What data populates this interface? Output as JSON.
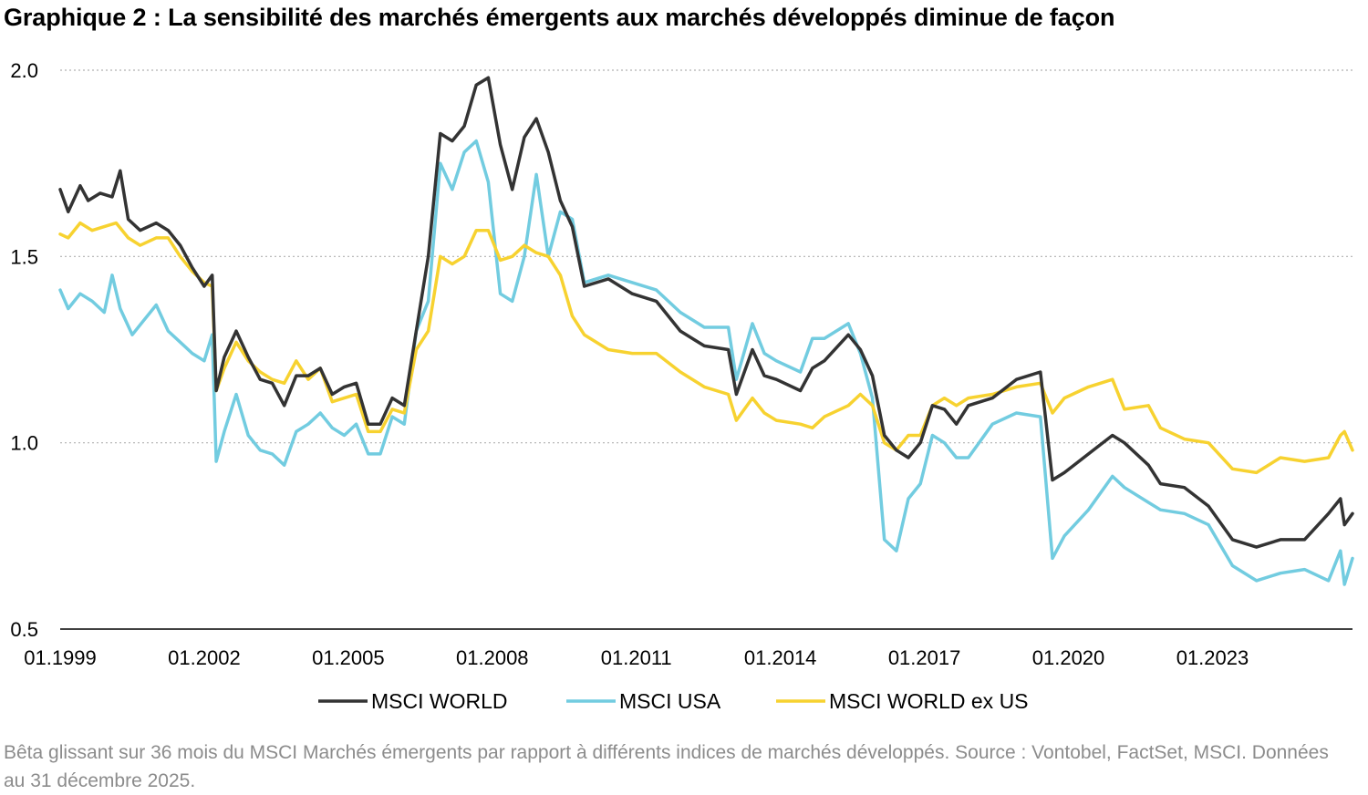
{
  "title": "Graphique 2 : La sensibilité des marchés émergents aux marchés développés diminue de façon",
  "note": "Bêta glissant sur 36 mois du MSCI Marchés émergents par rapport à différents indices de marchés développés. Source : Vontobel, FactSet, MSCI. Données au 31 décembre 2025.",
  "colors": {
    "world": "#333333",
    "usa": "#72cce0",
    "exus": "#f7d230",
    "grid": "#b0b0b0"
  },
  "chart_data": {
    "type": "line",
    "x_axis": {
      "start": "01.1999",
      "end": "12.2025",
      "ticks": [
        "01.1999",
        "01.2002",
        "01.2005",
        "01.2008",
        "01.2011",
        "01.2014",
        "01.2017",
        "01.2020",
        "01.2023"
      ]
    },
    "y_axis": {
      "min": 0.5,
      "max": 2.0,
      "ticks": [
        "0.5",
        "1.0",
        "1.5",
        "2.0"
      ]
    },
    "grid": "horizontal dotted",
    "legend_position": "bottom",
    "series": [
      {
        "name": "MSCI WORLD",
        "color": "#333333",
        "points": [
          [
            "01.1999",
            1.68
          ],
          [
            "03.1999",
            1.62
          ],
          [
            "06.1999",
            1.69
          ],
          [
            "08.1999",
            1.65
          ],
          [
            "11.1999",
            1.67
          ],
          [
            "02.2000",
            1.66
          ],
          [
            "04.2000",
            1.73
          ],
          [
            "06.2000",
            1.6
          ],
          [
            "09.2000",
            1.57
          ],
          [
            "01.2001",
            1.59
          ],
          [
            "04.2001",
            1.57
          ],
          [
            "07.2001",
            1.53
          ],
          [
            "10.2001",
            1.47
          ],
          [
            "01.2002",
            1.42
          ],
          [
            "03.2002",
            1.45
          ],
          [
            "04.2002",
            1.14
          ],
          [
            "06.2002",
            1.23
          ],
          [
            "09.2002",
            1.3
          ],
          [
            "12.2002",
            1.23
          ],
          [
            "03.2003",
            1.17
          ],
          [
            "06.2003",
            1.16
          ],
          [
            "09.2003",
            1.1
          ],
          [
            "12.2003",
            1.18
          ],
          [
            "03.2004",
            1.18
          ],
          [
            "06.2004",
            1.2
          ],
          [
            "09.2004",
            1.13
          ],
          [
            "12.2004",
            1.15
          ],
          [
            "03.2005",
            1.16
          ],
          [
            "06.2005",
            1.05
          ],
          [
            "09.2005",
            1.05
          ],
          [
            "12.2005",
            1.12
          ],
          [
            "03.2006",
            1.1
          ],
          [
            "06.2006",
            1.3
          ],
          [
            "09.2006",
            1.5
          ],
          [
            "12.2006",
            1.83
          ],
          [
            "03.2007",
            1.81
          ],
          [
            "06.2007",
            1.85
          ],
          [
            "09.2007",
            1.96
          ],
          [
            "12.2007",
            1.98
          ],
          [
            "03.2008",
            1.8
          ],
          [
            "06.2008",
            1.68
          ],
          [
            "09.2008",
            1.82
          ],
          [
            "12.2008",
            1.87
          ],
          [
            "03.2009",
            1.78
          ],
          [
            "06.2009",
            1.65
          ],
          [
            "09.2009",
            1.58
          ],
          [
            "12.2009",
            1.42
          ],
          [
            "06.2010",
            1.44
          ],
          [
            "12.2010",
            1.4
          ],
          [
            "06.2011",
            1.38
          ],
          [
            "12.2011",
            1.3
          ],
          [
            "06.2012",
            1.26
          ],
          [
            "12.2012",
            1.25
          ],
          [
            "02.2013",
            1.13
          ],
          [
            "06.2013",
            1.25
          ],
          [
            "09.2013",
            1.18
          ],
          [
            "12.2013",
            1.17
          ],
          [
            "06.2014",
            1.14
          ],
          [
            "09.2014",
            1.2
          ],
          [
            "12.2014",
            1.22
          ],
          [
            "06.2015",
            1.29
          ],
          [
            "09.2015",
            1.25
          ],
          [
            "12.2015",
            1.18
          ],
          [
            "03.2016",
            1.02
          ],
          [
            "06.2016",
            0.98
          ],
          [
            "09.2016",
            0.96
          ],
          [
            "12.2016",
            1.0
          ],
          [
            "03.2017",
            1.1
          ],
          [
            "06.2017",
            1.09
          ],
          [
            "09.2017",
            1.05
          ],
          [
            "12.2017",
            1.1
          ],
          [
            "06.2018",
            1.12
          ],
          [
            "12.2018",
            1.17
          ],
          [
            "06.2019",
            1.19
          ],
          [
            "09.2019",
            0.9
          ],
          [
            "12.2019",
            0.92
          ],
          [
            "06.2020",
            0.97
          ],
          [
            "12.2020",
            1.02
          ],
          [
            "03.2021",
            1.0
          ],
          [
            "09.2021",
            0.94
          ],
          [
            "12.2021",
            0.89
          ],
          [
            "06.2022",
            0.88
          ],
          [
            "12.2022",
            0.83
          ],
          [
            "06.2023",
            0.74
          ],
          [
            "12.2023",
            0.72
          ],
          [
            "06.2024",
            0.74
          ],
          [
            "12.2024",
            0.74
          ],
          [
            "06.2025",
            0.81
          ],
          [
            "09.2025",
            0.85
          ],
          [
            "10.2025",
            0.78
          ],
          [
            "12.2025",
            0.81
          ]
        ]
      },
      {
        "name": "MSCI USA",
        "color": "#72cce0",
        "points": [
          [
            "01.1999",
            1.41
          ],
          [
            "03.1999",
            1.36
          ],
          [
            "06.1999",
            1.4
          ],
          [
            "09.1999",
            1.38
          ],
          [
            "12.1999",
            1.35
          ],
          [
            "02.2000",
            1.45
          ],
          [
            "04.2000",
            1.36
          ],
          [
            "07.2000",
            1.29
          ],
          [
            "10.2000",
            1.33
          ],
          [
            "01.2001",
            1.37
          ],
          [
            "04.2001",
            1.3
          ],
          [
            "07.2001",
            1.27
          ],
          [
            "10.2001",
            1.24
          ],
          [
            "01.2002",
            1.22
          ],
          [
            "03.2002",
            1.29
          ],
          [
            "04.2002",
            0.95
          ],
          [
            "06.2002",
            1.03
          ],
          [
            "09.2002",
            1.13
          ],
          [
            "12.2002",
            1.02
          ],
          [
            "03.2003",
            0.98
          ],
          [
            "06.2003",
            0.97
          ],
          [
            "09.2003",
            0.94
          ],
          [
            "12.2003",
            1.03
          ],
          [
            "03.2004",
            1.05
          ],
          [
            "06.2004",
            1.08
          ],
          [
            "09.2004",
            1.04
          ],
          [
            "12.2004",
            1.02
          ],
          [
            "03.2005",
            1.05
          ],
          [
            "06.2005",
            0.97
          ],
          [
            "09.2005",
            0.97
          ],
          [
            "12.2005",
            1.07
          ],
          [
            "03.2006",
            1.05
          ],
          [
            "06.2006",
            1.3
          ],
          [
            "09.2006",
            1.38
          ],
          [
            "12.2006",
            1.75
          ],
          [
            "03.2007",
            1.68
          ],
          [
            "06.2007",
            1.78
          ],
          [
            "09.2007",
            1.81
          ],
          [
            "12.2007",
            1.7
          ],
          [
            "03.2008",
            1.4
          ],
          [
            "06.2008",
            1.38
          ],
          [
            "09.2008",
            1.5
          ],
          [
            "12.2008",
            1.72
          ],
          [
            "03.2009",
            1.5
          ],
          [
            "06.2009",
            1.62
          ],
          [
            "09.2009",
            1.6
          ],
          [
            "12.2009",
            1.43
          ],
          [
            "06.2010",
            1.45
          ],
          [
            "12.2010",
            1.43
          ],
          [
            "06.2011",
            1.41
          ],
          [
            "12.2011",
            1.35
          ],
          [
            "06.2012",
            1.31
          ],
          [
            "12.2012",
            1.31
          ],
          [
            "02.2013",
            1.17
          ],
          [
            "06.2013",
            1.32
          ],
          [
            "09.2013",
            1.24
          ],
          [
            "12.2013",
            1.22
          ],
          [
            "06.2014",
            1.19
          ],
          [
            "09.2014",
            1.28
          ],
          [
            "12.2014",
            1.28
          ],
          [
            "06.2015",
            1.32
          ],
          [
            "09.2015",
            1.24
          ],
          [
            "12.2015",
            1.12
          ],
          [
            "03.2016",
            0.74
          ],
          [
            "06.2016",
            0.71
          ],
          [
            "09.2016",
            0.85
          ],
          [
            "12.2016",
            0.89
          ],
          [
            "03.2017",
            1.02
          ],
          [
            "06.2017",
            1.0
          ],
          [
            "09.2017",
            0.96
          ],
          [
            "12.2017",
            0.96
          ],
          [
            "06.2018",
            1.05
          ],
          [
            "12.2018",
            1.08
          ],
          [
            "06.2019",
            1.07
          ],
          [
            "09.2019",
            0.69
          ],
          [
            "12.2019",
            0.75
          ],
          [
            "06.2020",
            0.82
          ],
          [
            "12.2020",
            0.91
          ],
          [
            "03.2021",
            0.88
          ],
          [
            "09.2021",
            0.84
          ],
          [
            "12.2021",
            0.82
          ],
          [
            "06.2022",
            0.81
          ],
          [
            "12.2022",
            0.78
          ],
          [
            "06.2023",
            0.67
          ],
          [
            "12.2023",
            0.63
          ],
          [
            "06.2024",
            0.65
          ],
          [
            "12.2024",
            0.66
          ],
          [
            "06.2025",
            0.63
          ],
          [
            "09.2025",
            0.71
          ],
          [
            "10.2025",
            0.62
          ],
          [
            "12.2025",
            0.69
          ]
        ]
      },
      {
        "name": "MSCI WORLD ex US",
        "color": "#f7d230",
        "points": [
          [
            "01.1999",
            1.56
          ],
          [
            "03.1999",
            1.55
          ],
          [
            "06.1999",
            1.59
          ],
          [
            "09.1999",
            1.57
          ],
          [
            "12.1999",
            1.58
          ],
          [
            "03.2000",
            1.59
          ],
          [
            "06.2000",
            1.55
          ],
          [
            "09.2000",
            1.53
          ],
          [
            "01.2001",
            1.55
          ],
          [
            "04.2001",
            1.55
          ],
          [
            "07.2001",
            1.5
          ],
          [
            "10.2001",
            1.46
          ],
          [
            "01.2002",
            1.43
          ],
          [
            "03.2002",
            1.42
          ],
          [
            "04.2002",
            1.14
          ],
          [
            "06.2002",
            1.2
          ],
          [
            "09.2002",
            1.27
          ],
          [
            "12.2002",
            1.22
          ],
          [
            "03.2003",
            1.19
          ],
          [
            "06.2003",
            1.17
          ],
          [
            "09.2003",
            1.16
          ],
          [
            "12.2003",
            1.22
          ],
          [
            "03.2004",
            1.17
          ],
          [
            "06.2004",
            1.2
          ],
          [
            "09.2004",
            1.11
          ],
          [
            "12.2004",
            1.12
          ],
          [
            "03.2005",
            1.13
          ],
          [
            "06.2005",
            1.03
          ],
          [
            "09.2005",
            1.03
          ],
          [
            "12.2005",
            1.09
          ],
          [
            "03.2006",
            1.08
          ],
          [
            "06.2006",
            1.25
          ],
          [
            "09.2006",
            1.3
          ],
          [
            "12.2006",
            1.5
          ],
          [
            "03.2007",
            1.48
          ],
          [
            "06.2007",
            1.5
          ],
          [
            "09.2007",
            1.57
          ],
          [
            "12.2007",
            1.57
          ],
          [
            "03.2008",
            1.49
          ],
          [
            "06.2008",
            1.5
          ],
          [
            "09.2008",
            1.53
          ],
          [
            "12.2008",
            1.51
          ],
          [
            "03.2009",
            1.5
          ],
          [
            "06.2009",
            1.45
          ],
          [
            "09.2009",
            1.34
          ],
          [
            "12.2009",
            1.29
          ],
          [
            "06.2010",
            1.25
          ],
          [
            "12.2010",
            1.24
          ],
          [
            "06.2011",
            1.24
          ],
          [
            "12.2011",
            1.19
          ],
          [
            "06.2012",
            1.15
          ],
          [
            "12.2012",
            1.13
          ],
          [
            "02.2013",
            1.06
          ],
          [
            "06.2013",
            1.12
          ],
          [
            "09.2013",
            1.08
          ],
          [
            "12.2013",
            1.06
          ],
          [
            "06.2014",
            1.05
          ],
          [
            "09.2014",
            1.04
          ],
          [
            "12.2014",
            1.07
          ],
          [
            "06.2015",
            1.1
          ],
          [
            "09.2015",
            1.13
          ],
          [
            "12.2015",
            1.1
          ],
          [
            "03.2016",
            1.0
          ],
          [
            "06.2016",
            0.98
          ],
          [
            "09.2016",
            1.02
          ],
          [
            "12.2016",
            1.02
          ],
          [
            "03.2017",
            1.1
          ],
          [
            "06.2017",
            1.12
          ],
          [
            "09.2017",
            1.1
          ],
          [
            "12.2017",
            1.12
          ],
          [
            "06.2018",
            1.13
          ],
          [
            "12.2018",
            1.15
          ],
          [
            "06.2019",
            1.16
          ],
          [
            "09.2019",
            1.08
          ],
          [
            "12.2019",
            1.12
          ],
          [
            "06.2020",
            1.15
          ],
          [
            "12.2020",
            1.17
          ],
          [
            "03.2021",
            1.09
          ],
          [
            "09.2021",
            1.1
          ],
          [
            "12.2021",
            1.04
          ],
          [
            "06.2022",
            1.01
          ],
          [
            "12.2022",
            1.0
          ],
          [
            "06.2023",
            0.93
          ],
          [
            "12.2023",
            0.92
          ],
          [
            "06.2024",
            0.96
          ],
          [
            "12.2024",
            0.95
          ],
          [
            "06.2025",
            0.96
          ],
          [
            "09.2025",
            1.02
          ],
          [
            "10.2025",
            1.03
          ],
          [
            "12.2025",
            0.98
          ]
        ]
      }
    ]
  }
}
